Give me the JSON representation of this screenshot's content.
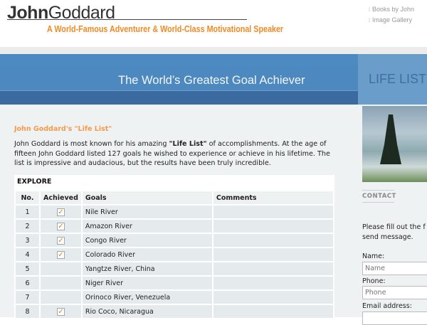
{
  "header": {
    "logo_bold": "John",
    "logo_light": "Goddard",
    "tagline": "A World-Famous Adventurer & World-Class Motivational Speaker",
    "links": [
      "Books by John",
      "Image Gallery"
    ]
  },
  "banner": {
    "title": "The World’s Greatest Goal Achiever",
    "section": "LIFE LIST"
  },
  "main": {
    "subtitle": "John Goddard's \"Life List\"",
    "intro_pre": "John Goddard is most known for his amazing ",
    "intro_bold": "\"Life List\"",
    "intro_post": " of accomplishments. At the age of fifteen John Goddard listed 127 goals he wished to experience or achieve in his lifetime. The list is impressive and audacious, but the results have been truly incredible."
  },
  "table": {
    "caption": "EXPLORE",
    "columns": [
      "No.",
      "Achieved",
      "Goals",
      "Comments"
    ],
    "rows": [
      {
        "no": "1",
        "achieved": true,
        "goal": "Nile River",
        "comment": ""
      },
      {
        "no": "2",
        "achieved": true,
        "goal": "Amazon River",
        "comment": ""
      },
      {
        "no": "3",
        "achieved": true,
        "goal": "Congo River",
        "comment": ""
      },
      {
        "no": "4",
        "achieved": true,
        "goal": "Colorado River",
        "comment": ""
      },
      {
        "no": "5",
        "achieved": false,
        "goal": "Yangtze River, China",
        "comment": ""
      },
      {
        "no": "6",
        "achieved": false,
        "goal": "Niger River",
        "comment": ""
      },
      {
        "no": "7",
        "achieved": false,
        "goal": "Orinoco River, Venezuela",
        "comment": ""
      },
      {
        "no": "8",
        "achieved": true,
        "goal": "Rio Coco, Nicaragua",
        "comment": ""
      }
    ]
  },
  "sidebar": {
    "contact_heading": "CONTACT",
    "contact_text_1": "Please fill out the f",
    "contact_text_2": "send message.",
    "name_label": "Name:",
    "name_placeholder": "Name",
    "phone_label": "Phone:",
    "phone_placeholder": "Phone",
    "email_label": "Email address:"
  },
  "colors": {
    "accent": "#f08a24",
    "banner": "#4c8ac0",
    "banner_dark": "#3a6aa0"
  }
}
